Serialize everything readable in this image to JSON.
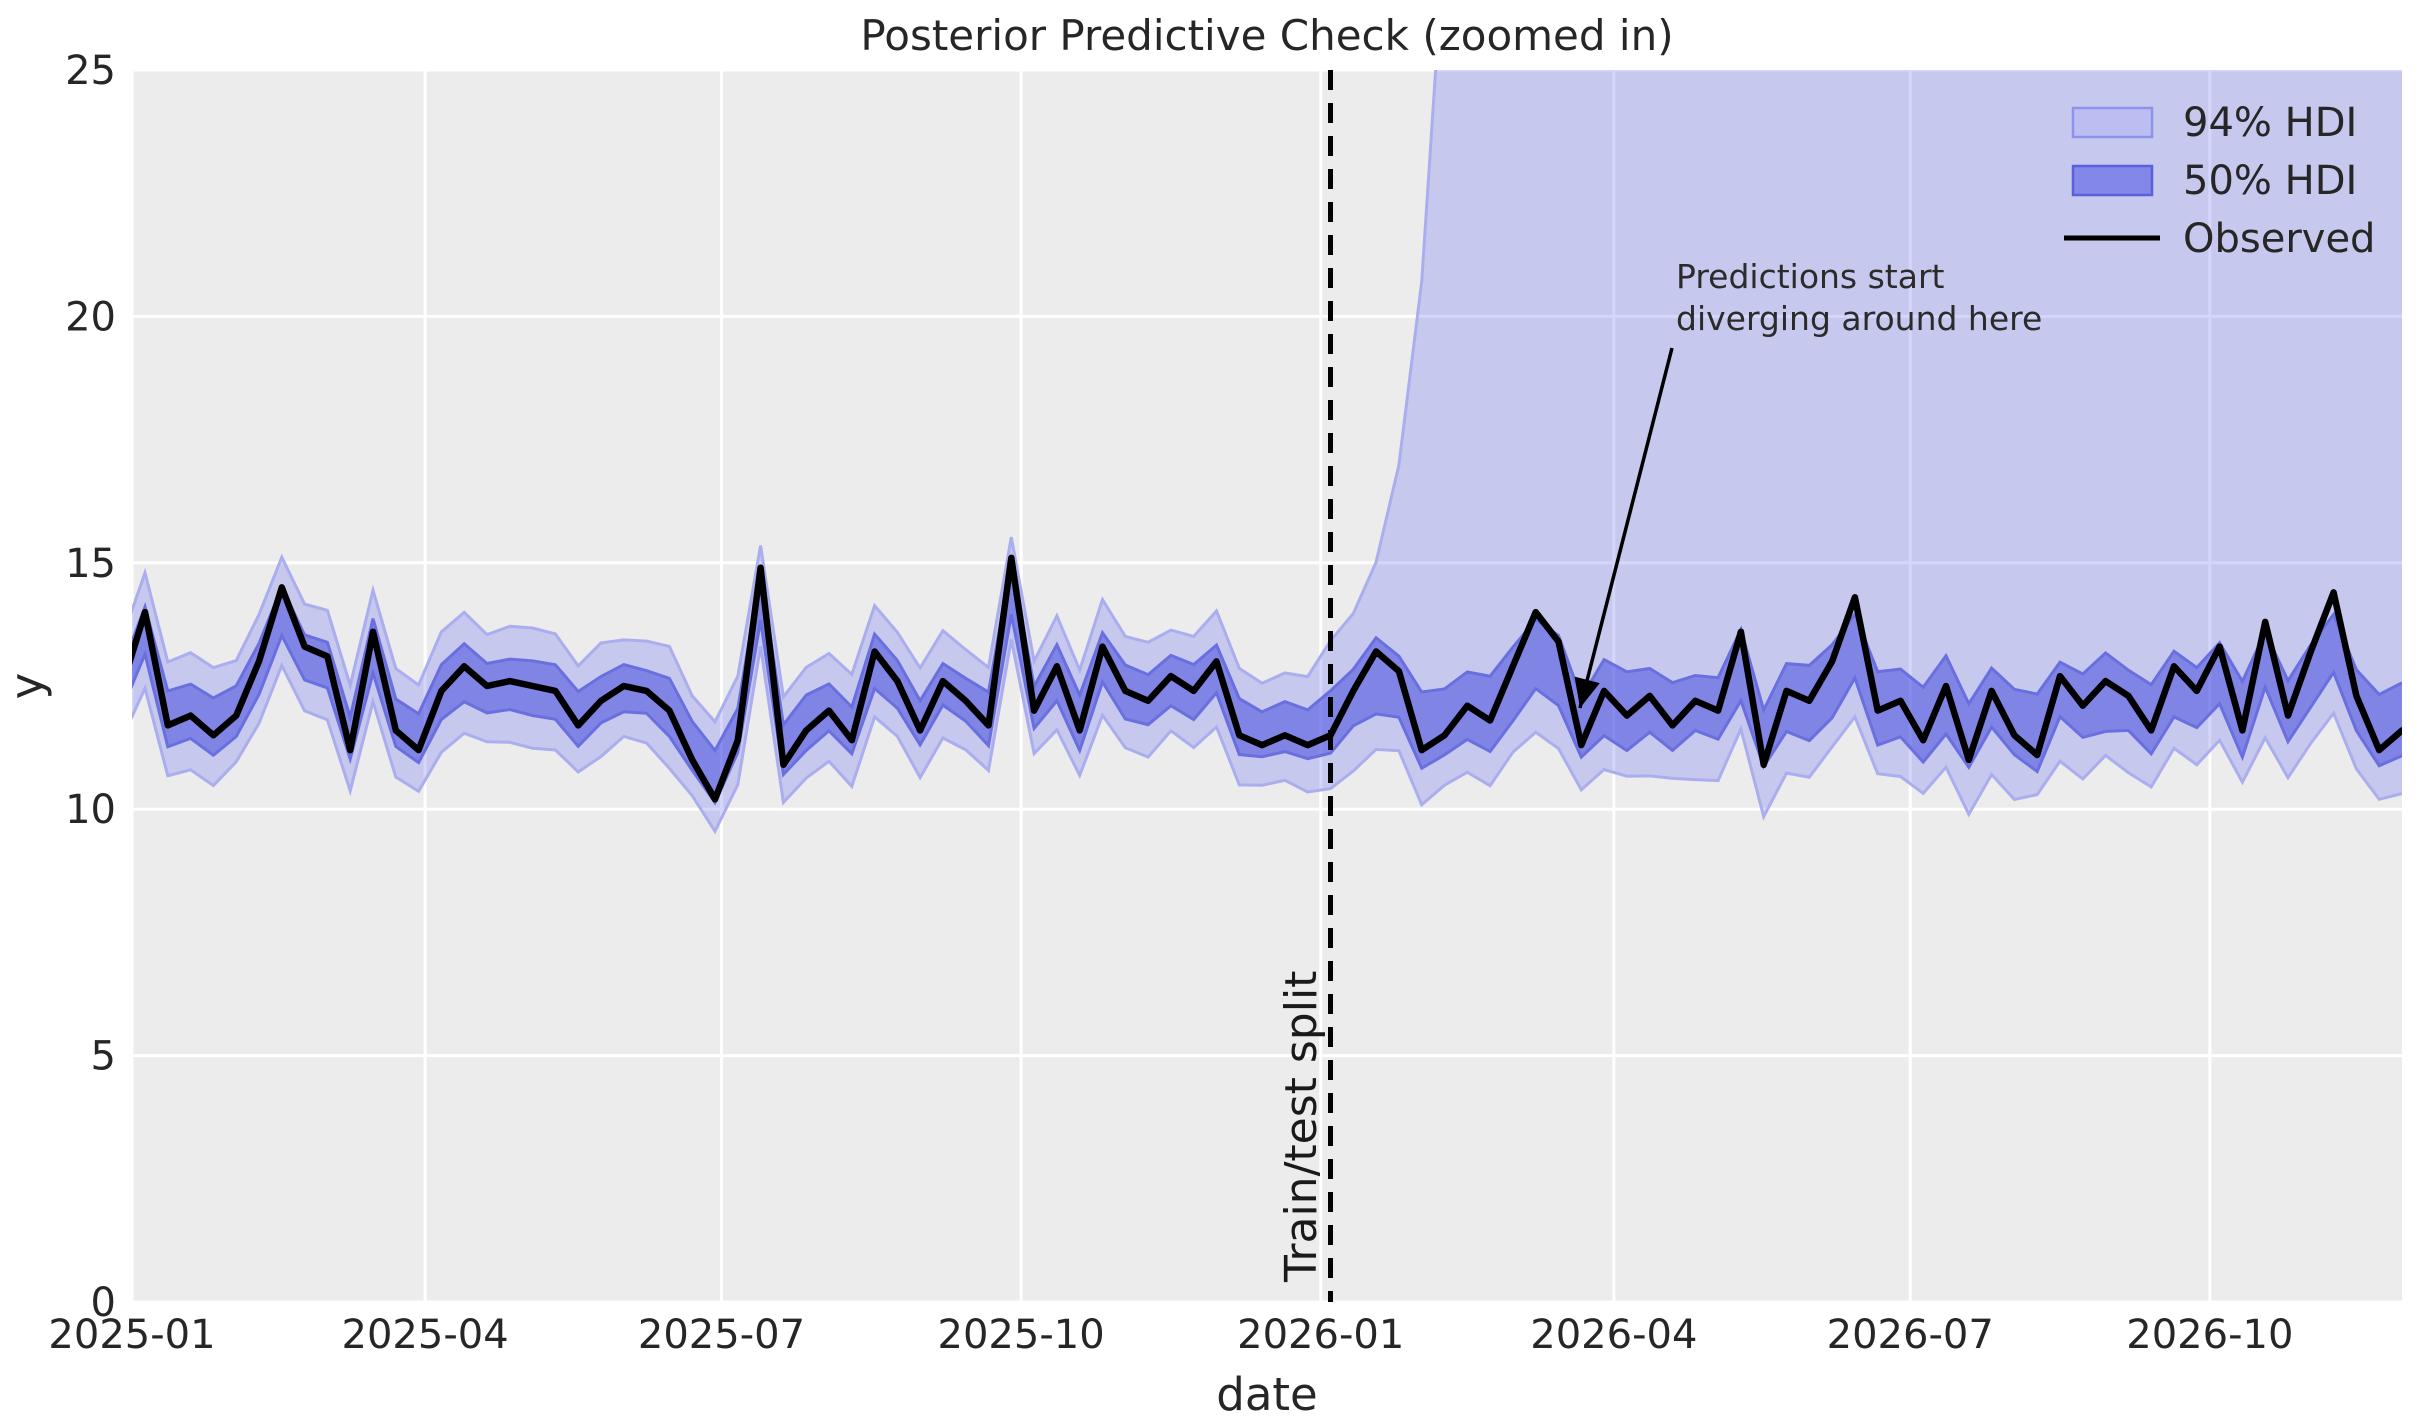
{
  "figure": {
    "title": "Posterior Predictive Check (zoomed in)",
    "colors": {
      "axes_background": "#ececec",
      "gridline": "#ffffff",
      "hdi94_fill": "rgba(102,106,240,0.28)",
      "hdi94_edge": "#abaeee",
      "hdi50_fill": "rgba(64,70,222,0.52)",
      "hdi50_edge": "#6a6fdf",
      "observed_line": "#000000",
      "split_line": "#000000",
      "legend94_swatch_fill": "#bcbef1",
      "legend94_swatch_edge": "#8d92ea",
      "legend50_swatch_fill": "#8387e8",
      "legend50_swatch_edge": "#5a60dd"
    }
  },
  "chart_data": {
    "type": "line",
    "title": "Posterior Predictive Check (zoomed in)",
    "xlabel": "date",
    "ylabel": "y",
    "ylim": [
      0,
      25
    ],
    "y_ticks": [
      0,
      5,
      10,
      15,
      20,
      25
    ],
    "x_ticks": [
      {
        "label": "2025-01",
        "day": 0
      },
      {
        "label": "2025-04",
        "day": 90
      },
      {
        "label": "2025-07",
        "day": 181
      },
      {
        "label": "2025-10",
        "day": 273
      },
      {
        "label": "2026-01",
        "day": 365
      },
      {
        "label": "2026-04",
        "day": 455
      },
      {
        "label": "2026-07",
        "day": 546
      },
      {
        "label": "2026-10",
        "day": 638
      }
    ],
    "xlim_days": [
      0,
      697
    ],
    "x_first_point_day": -3,
    "x_step_days": 7,
    "observed": [
      12.5,
      14.0,
      11.7,
      11.9,
      11.5,
      11.9,
      13.0,
      14.5,
      13.3,
      13.1,
      11.2,
      13.6,
      11.6,
      11.2,
      12.4,
      12.9,
      12.5,
      12.6,
      12.5,
      12.4,
      11.7,
      12.2,
      12.5,
      12.4,
      12.0,
      11.0,
      10.2,
      11.4,
      14.9,
      10.9,
      11.6,
      12.0,
      11.4,
      13.2,
      12.6,
      11.6,
      12.6,
      12.2,
      11.7,
      15.1,
      12.0,
      12.9,
      11.6,
      13.3,
      12.4,
      12.2,
      12.7,
      12.4,
      13.0,
      11.5,
      11.3,
      11.5,
      11.3,
      11.5,
      12.4,
      13.2,
      12.8,
      11.2,
      11.5,
      12.1,
      11.8,
      12.9,
      14.0,
      13.4,
      11.3,
      12.4,
      11.9,
      12.3,
      11.7,
      12.2,
      12.0,
      13.6,
      10.9,
      12.4,
      12.2,
      13.0,
      14.3,
      12.0,
      12.2,
      11.4,
      12.5,
      11.0,
      12.4,
      11.5,
      11.1,
      12.7,
      12.1,
      12.6,
      12.3,
      11.6,
      12.9,
      12.4,
      13.3,
      11.6,
      13.8,
      11.9,
      13.2,
      14.4,
      12.3,
      11.2,
      11.6
    ],
    "split_day": 368,
    "split_index": 53,
    "split_label": "Train/test split",
    "annotation": {
      "line1": "Predictions start",
      "line2": "diverging around here"
    },
    "legend": {
      "hdi94": "94% HDI",
      "hdi50": "50% HDI",
      "observed": "Observed"
    },
    "hdi_bands": {
      "pre_split": {
        "center_shrink": 0.78,
        "center_anchor": 12.3,
        "half_width_50_base": 0.42,
        "half_width_50_jitter": 0.18,
        "extra_94_base": 0.5,
        "extra_94_jitter": 0.2
      },
      "post_split": {
        "center_shrink": 0.55,
        "center_anchor": 12.1,
        "half_width_50_base": 0.55,
        "half_width_50_jitter": 0.25,
        "lower_94_offset_base": 1.25,
        "lower_94_offset_jitter": 0.35,
        "upper_94_explosion": {
          "base": 12.8,
          "scale": 0.62,
          "tau_days": 11,
          "cap": 28
        }
      }
    }
  }
}
